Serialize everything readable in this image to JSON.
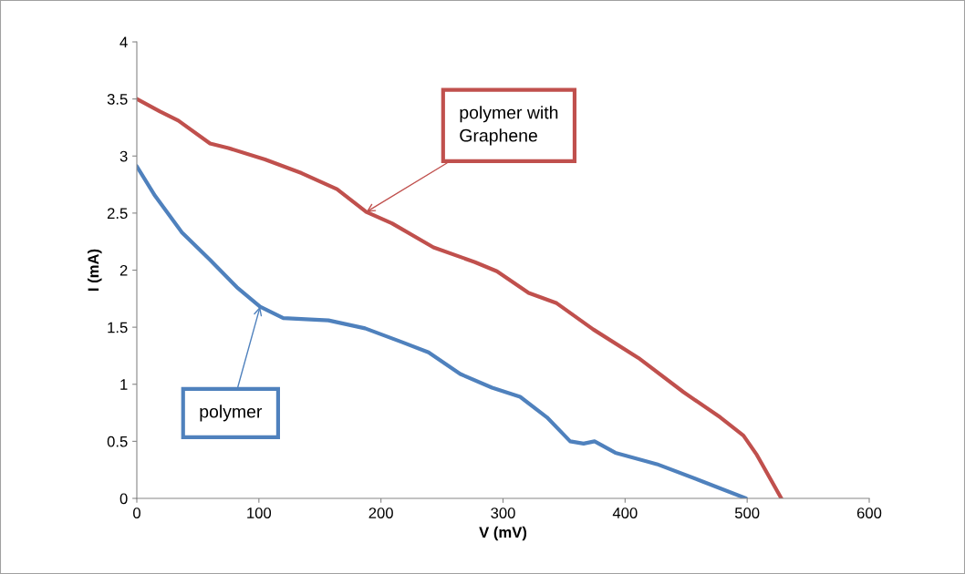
{
  "chart_data": {
    "type": "line",
    "xlabel": "V (mV)",
    "ylabel": "I (mA)",
    "xlim": [
      0,
      600
    ],
    "xticks": [
      0,
      100,
      200,
      300,
      400,
      500,
      600
    ],
    "ylim": [
      0,
      4
    ],
    "yticks": [
      0,
      0.5,
      1,
      1.5,
      2,
      2.5,
      3,
      3.5,
      4
    ],
    "grid": false,
    "legend": false,
    "marker": "none",
    "line_style": "solid",
    "series": [
      {
        "color": "#c0504d",
        "x": [
          0,
          19,
          34,
          60,
          75,
          105,
          135,
          164,
          188,
          209,
          243,
          277,
          295,
          321,
          344,
          374,
          411,
          448,
          478,
          497,
          508,
          528
        ],
        "values": [
          3.5,
          3.39,
          3.31,
          3.11,
          3.07,
          2.97,
          2.85,
          2.71,
          2.51,
          2.41,
          2.2,
          2.07,
          1.99,
          1.8,
          1.71,
          1.48,
          1.23,
          0.93,
          0.71,
          0.55,
          0.38,
          0
        ]
      },
      {
        "color": "#4f81bd",
        "x": [
          0,
          15,
          37,
          60,
          82,
          101,
          120,
          157,
          187,
          217,
          239,
          265,
          291,
          314,
          336,
          355,
          366,
          375,
          392,
          426,
          463,
          499
        ],
        "values": [
          2.91,
          2.65,
          2.33,
          2.09,
          1.85,
          1.68,
          1.58,
          1.56,
          1.49,
          1.37,
          1.28,
          1.09,
          0.97,
          0.89,
          0.71,
          0.5,
          0.48,
          0.5,
          0.4,
          0.3,
          0.15,
          0
        ]
      }
    ],
    "annotations": [
      {
        "text": "polymer with\nGraphene",
        "x": 188,
        "y": 2.51
      },
      {
        "text": "polymer",
        "x": 101,
        "y": 1.68
      }
    ]
  }
}
